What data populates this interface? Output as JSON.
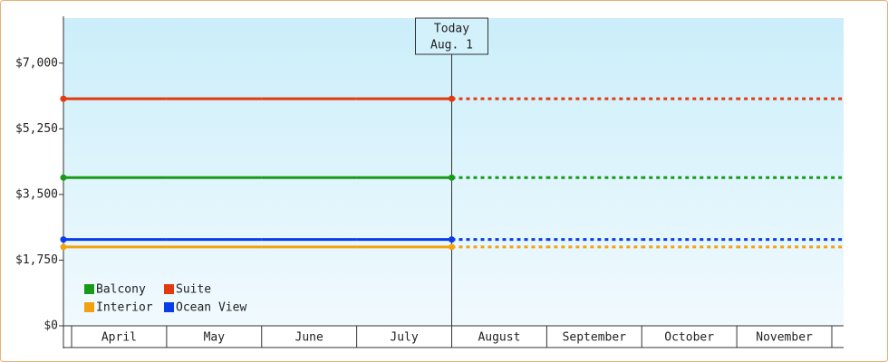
{
  "chart_data": {
    "type": "line",
    "categories": [
      "April",
      "May",
      "June",
      "July",
      "August",
      "September",
      "October",
      "November"
    ],
    "series": [
      {
        "name": "Balcony",
        "color": "#179a17",
        "values": [
          3950,
          3950,
          3950,
          3950,
          3950,
          3950,
          3950,
          3950
        ]
      },
      {
        "name": "Suite",
        "color": "#e23a0e",
        "values": [
          6050,
          6050,
          6050,
          6050,
          6050,
          6050,
          6050,
          6050
        ]
      },
      {
        "name": "Interior",
        "color": "#f2a20f",
        "values": [
          2100,
          2100,
          2100,
          2100,
          2100,
          2100,
          2100,
          2100
        ]
      },
      {
        "name": "Ocean View",
        "color": "#0a3ce8",
        "values": [
          2300,
          2300,
          2300,
          2300,
          2300,
          2300,
          2300,
          2300
        ]
      }
    ],
    "ylim": [
      0,
      8200
    ],
    "yticks": [
      {
        "value": 0,
        "label": "$0"
      },
      {
        "value": 1750,
        "label": "$1,750"
      },
      {
        "value": 3500,
        "label": "$3,500"
      },
      {
        "value": 5250,
        "label": "$5,250"
      },
      {
        "value": 7000,
        "label": "$7,000"
      }
    ],
    "annotation": {
      "title": "Today",
      "date": "Aug. 1"
    }
  }
}
